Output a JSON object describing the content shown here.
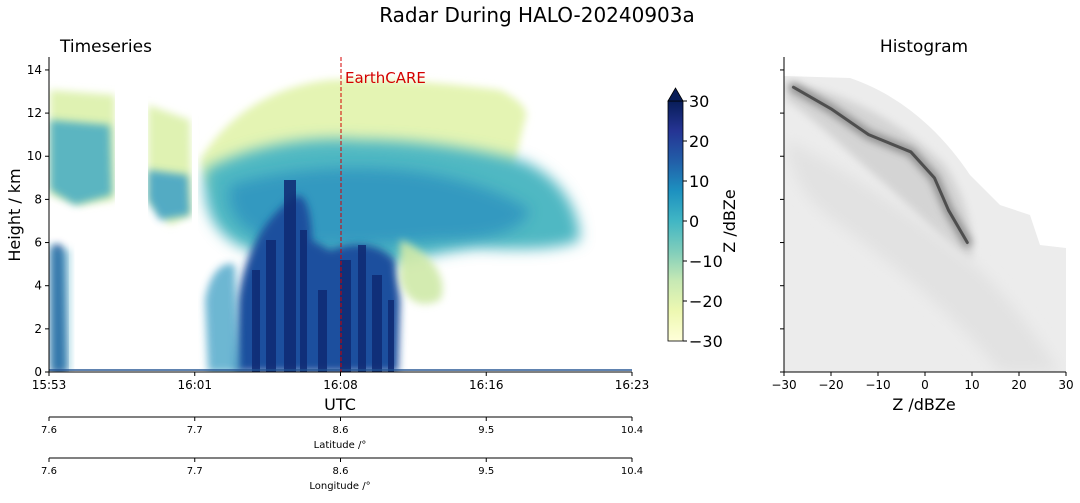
{
  "figure_title": "Radar During HALO-20240903a",
  "chart_data": [
    {
      "type": "heatmap",
      "title": "Timeseries",
      "xlabel": "UTC",
      "ylabel": "Height / km",
      "x_ticks": [
        "15:53",
        "16:01",
        "16:08",
        "16:16",
        "16:23"
      ],
      "y_ticks": [
        0,
        2,
        4,
        6,
        8,
        10,
        12,
        14
      ],
      "ylim": [
        0,
        14.6
      ],
      "annotation": {
        "label": "EarthCARE",
        "time": "16:08",
        "color": "#d40000"
      },
      "colorbar": {
        "label": "Z /dBZe",
        "ticks": [
          -30,
          -20,
          -10,
          0,
          10,
          20,
          30
        ],
        "range": [
          -30,
          30
        ],
        "colormap": "YlGnBu",
        "extend": "max"
      },
      "secondary_axes": [
        {
          "label": "Latitude /°",
          "ticks": [
            "7.6",
            "7.7",
            "8.6",
            "9.5",
            "10.4"
          ]
        },
        {
          "label": "Longitude /°",
          "ticks": [
            "7.6",
            "7.7",
            "8.6",
            "9.5",
            "10.4"
          ]
        }
      ],
      "gaps": [
        [
          "15:59:00",
          "16:00:30"
        ],
        [
          "16:01:40",
          "16:02:00"
        ]
      ],
      "regions": [
        {
          "z_dbze": 2,
          "x": [
            15.889,
            16.05
          ],
          "y": [
            7.7,
            13.2
          ]
        },
        {
          "z_dbze": -15,
          "x": [
            16.06,
            16.39
          ],
          "y": [
            9.0,
            13.4
          ]
        },
        {
          "z_dbze": 5,
          "x": [
            16.08,
            16.38
          ],
          "y": [
            5.5,
            12.5
          ]
        },
        {
          "z_dbze": 22,
          "x": [
            16.115,
            16.27
          ],
          "y": [
            0,
            7.0
          ]
        },
        {
          "z_dbze": 25,
          "x": [
            15.893,
            15.905
          ],
          "y": [
            0,
            6.0
          ]
        },
        {
          "z_dbze": 10,
          "x": [
            16.075,
            16.12
          ],
          "y": [
            2.0,
            5.0
          ]
        }
      ]
    },
    {
      "type": "heatmap",
      "title": "Histogram",
      "xlabel": "Z /dBZe",
      "x_ticks": [
        -30,
        -20,
        -10,
        0,
        10,
        20,
        30
      ],
      "xlim": [
        -30,
        30
      ],
      "ylim": [
        0,
        14.6
      ],
      "colormap": "Greys",
      "ridge": [
        [
          -28,
          13.2
        ],
        [
          -20,
          12.2
        ],
        [
          -12,
          11.0
        ],
        [
          -3,
          10.2
        ],
        [
          2,
          9.0
        ],
        [
          5,
          7.5
        ],
        [
          9,
          6.0
        ]
      ]
    }
  ]
}
